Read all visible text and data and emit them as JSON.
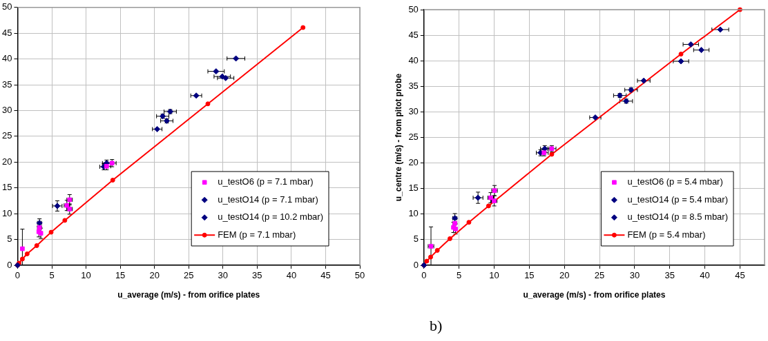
{
  "chart_data": [
    {
      "type": "scatter",
      "xlabel": "u_average (m/s) - from orifice plates",
      "xlim": [
        0,
        50
      ],
      "xticks": [
        0,
        5,
        10,
        15,
        20,
        25,
        30,
        35,
        40,
        45,
        50
      ],
      "ylim": [
        0,
        50
      ],
      "yticks": [
        0,
        5,
        10,
        15,
        20,
        25,
        30,
        35,
        40,
        45,
        50
      ],
      "grid": true,
      "legend": "bottom right",
      "series": [
        {
          "name": "u_testO6 (p = 7.1 mbar)",
          "color": "#ff00ff",
          "marker": "square",
          "x": [
            0.7,
            3.2,
            3.1,
            3.4,
            7.2,
            7.6,
            7.6,
            13.0,
            13.8
          ],
          "values": [
            3.2,
            7.3,
            6.5,
            6.2,
            11.6,
            10.9,
            12.7,
            19.2,
            19.8
          ],
          "errors": [
            [
              0,
              7.0
            ],
            null,
            1,
            1,
            1,
            1,
            1,
            0.7,
            0.7
          ],
          "xerrors": [
            null,
            0.3,
            null,
            null,
            0.4,
            0.4,
            0.4,
            0.6,
            0.6
          ]
        },
        {
          "name": "u_testO14 (p = 7.1 mbar)",
          "color": "#000080",
          "marker": "diamond",
          "x": [
            0,
            3.2,
            5.8,
            12.6,
            13.0,
            21.2,
            22.3,
            21.8,
            29.0,
            29.9,
            30.4,
            31.9
          ],
          "values": [
            0,
            8.2,
            11.5,
            19.1,
            19.8,
            28.9,
            29.8,
            28.0,
            37.6,
            36.6,
            36.3,
            40.1
          ],
          "errors": [
            null,
            0.8,
            1,
            0.6,
            0.6,
            0.4,
            0.4,
            0.4,
            null,
            null,
            null,
            null
          ],
          "xerrors": [
            null,
            0.3,
            0.7,
            0.6,
            0.6,
            0.9,
            0.9,
            0.9,
            1.2,
            1.2,
            1.2,
            1.3
          ]
        },
        {
          "name": "u_testO14 (p = 10.2 mbar)",
          "color": "#000080",
          "marker": "diamond",
          "x": [
            20.4,
            26.1
          ],
          "values": [
            26.4,
            32.9
          ],
          "xerrors": [
            0.7,
            0.8
          ]
        },
        {
          "name": "FEM (p = 7.1 mbar)",
          "type": "line",
          "color": "#ff0000",
          "marker": "circle",
          "x": [
            0,
            0.2,
            0.7,
            1.4,
            2.8,
            4.9,
            6.9,
            13.9,
            27.8,
            41.7
          ],
          "values": [
            0,
            0.4,
            1.2,
            2.2,
            3.8,
            6.4,
            8.7,
            16.5,
            31.3,
            46.1
          ]
        }
      ]
    },
    {
      "type": "scatter",
      "xlabel": "u_average (m/s) - from orifice plates",
      "ylabel": "u_centre (m/s) - from pitot probe",
      "xlim": [
        0,
        48.5
      ],
      "xticks": [
        0,
        5,
        10,
        15,
        20,
        25,
        30,
        35,
        40,
        45
      ],
      "ylim": [
        0,
        50
      ],
      "yticks": [
        0,
        5,
        10,
        15,
        20,
        25,
        30,
        35,
        40,
        45,
        50
      ],
      "grid": true,
      "legend": "bottom right",
      "annotations": [
        "b)"
      ],
      "series": [
        {
          "name": "u_testO6 (p = 5.4 mbar)",
          "color": "#ff00ff",
          "marker": "square",
          "x": [
            1.0,
            4.2,
            4.4,
            4.5,
            9.5,
            10.0,
            10.05,
            17.1,
            18.2
          ],
          "values": [
            3.7,
            7.4,
            8.2,
            7.1,
            13.2,
            12.6,
            14.6,
            22.0,
            22.8
          ],
          "errors": [
            [
              0,
              7.5
            ],
            1,
            null,
            1,
            1,
            1,
            1,
            0.6,
            0.6
          ],
          "xerrors": [
            0.4,
            null,
            0.3,
            null,
            0.4,
            0.4,
            0.4,
            0.6,
            0.6
          ]
        },
        {
          "name": "u_testO14 (p = 5.4 mbar)",
          "color": "#000080",
          "marker": "diamond",
          "x": [
            0,
            4.4,
            7.7,
            16.6,
            17.2,
            27.9,
            28.8,
            29.5,
            36.6,
            38.0,
            39.5,
            42.2
          ],
          "values": [
            0,
            9.2,
            13.2,
            22.0,
            22.8,
            33.2,
            32.1,
            34.3,
            39.9,
            43.2,
            42.1,
            46.1
          ],
          "errors": [
            null,
            0.9,
            1.1,
            0.6,
            0.6,
            0.4,
            0.4,
            0.4,
            null,
            null,
            null,
            null
          ],
          "xerrors": [
            null,
            0.3,
            0.7,
            0.6,
            0.6,
            0.9,
            0.9,
            0.9,
            1.1,
            1.1,
            1.1,
            1.2
          ]
        },
        {
          "name": "u_testO14 (p = 8.5 mbar)",
          "color": "#000080",
          "marker": "diamond",
          "x": [
            24.4,
            31.3
          ],
          "values": [
            28.9,
            36.1
          ],
          "xerrors": [
            0.8,
            0.9
          ]
        },
        {
          "name": "FEM (p = 5.4 mbar)",
          "type": "line",
          "color": "#ff0000",
          "marker": "circle",
          "x": [
            0,
            0.4,
            0.95,
            1.9,
            3.7,
            6.4,
            9.2,
            18.2,
            36.6,
            45.0
          ],
          "values": [
            0,
            0.8,
            1.6,
            2.9,
            5.2,
            8.4,
            11.6,
            21.7,
            41.3,
            50
          ]
        }
      ]
    }
  ]
}
